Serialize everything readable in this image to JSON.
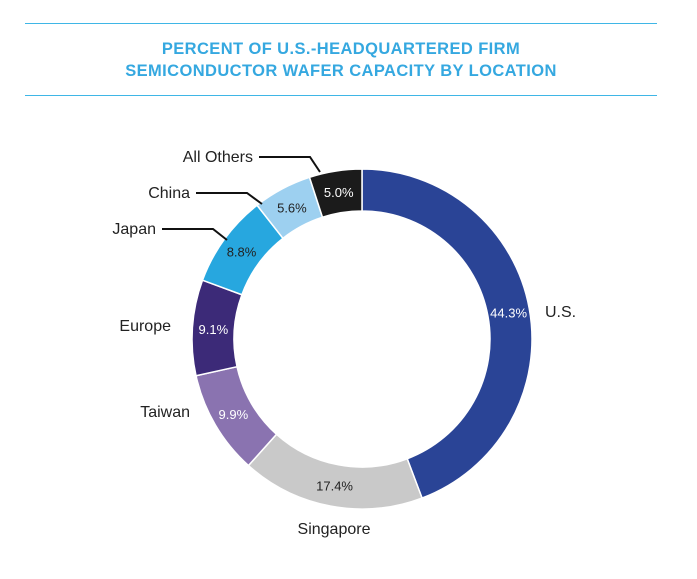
{
  "chart_data": {
    "type": "pie",
    "style": "donut",
    "title_lines": [
      "PERCENT OF U.S.-HEADQUARTERED FIRM",
      "SEMICONDUCTOR WAFER CAPACITY BY LOCATION"
    ],
    "slices": [
      {
        "label": "U.S.",
        "value": 44.3,
        "value_label": "44.3%",
        "color": "#2a4496",
        "text_color": "#ffffff"
      },
      {
        "label": "Singapore",
        "value": 17.4,
        "value_label": "17.4%",
        "color": "#c9c9c9",
        "text_color": "#222222"
      },
      {
        "label": "Taiwan",
        "value": 9.9,
        "value_label": "9.9%",
        "color": "#8a73b0",
        "text_color": "#ffffff"
      },
      {
        "label": "Europe",
        "value": 9.1,
        "value_label": "9.1%",
        "color": "#3c2a78",
        "text_color": "#ffffff"
      },
      {
        "label": "Japan",
        "value": 8.8,
        "value_label": "8.8%",
        "color": "#27a7df",
        "text_color": "#222222"
      },
      {
        "label": "China",
        "value": 5.6,
        "value_label": "5.6%",
        "color": "#9dd0f0",
        "text_color": "#222222"
      },
      {
        "label": "All Others",
        "value": 5.0,
        "value_label": "5.0%",
        "color": "#1b1b1b",
        "text_color": "#ffffff"
      }
    ]
  },
  "colors": {
    "accent": "#35a8e0",
    "rule": "#3fb6e6"
  }
}
